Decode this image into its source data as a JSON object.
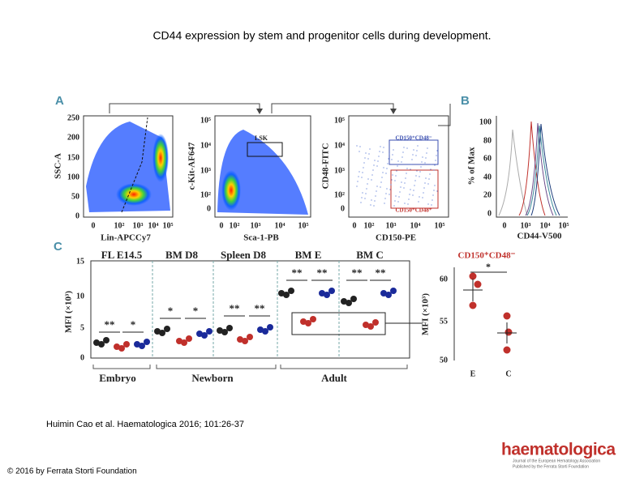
{
  "title": "CD44 expression by stem and progenitor cells during development.",
  "figure": {
    "panel_a": {
      "letter": "A",
      "plots": [
        {
          "ylabel": "SSC-A",
          "xlabel": "Lin-APCCy7",
          "yticks": [
            "250",
            "200",
            "150",
            "100",
            "50",
            "0"
          ],
          "xticks": [
            "0",
            "10²",
            "10³",
            "10⁴",
            "10⁵"
          ]
        },
        {
          "ylabel": "c-Kit-AF647",
          "xlabel": "Sca-1-PB",
          "yticks": [
            "10⁵",
            "10⁴",
            "10³",
            "10²",
            "0"
          ],
          "xticks": [
            "0",
            "10²",
            "10³",
            "10⁴",
            "10⁵"
          ],
          "gate": "LSK"
        },
        {
          "ylabel": "CD48-FITC",
          "xlabel": "CD150-PE",
          "yticks": [
            "10⁵",
            "10⁴",
            "10³",
            "10²",
            "0"
          ],
          "xticks": [
            "0",
            "10²",
            "10³",
            "10⁴",
            "10⁵"
          ],
          "gates": [
            "CD150⁺CD48⁻",
            "CD150⁺CD48⁺"
          ]
        }
      ]
    },
    "panel_b": {
      "letter": "B",
      "ylabel": "% of Max",
      "xlabel": "CD44-V500",
      "yticks": [
        "100",
        "80",
        "60",
        "40",
        "20",
        "0"
      ],
      "xticks": [
        "0",
        "10³",
        "10⁴",
        "10⁵"
      ]
    },
    "panel_c": {
      "letter": "C",
      "ylabel": "MFI (×10³)",
      "yticks": [
        "15",
        "10",
        "5",
        "0"
      ],
      "groups": [
        "FL E14.5",
        "BM D8",
        "Spleen D8",
        "BM E",
        "BM C"
      ],
      "stages": [
        "Embryo",
        "Newborn",
        "Adult"
      ],
      "significance": [
        "**",
        "*",
        "*",
        "*",
        "**",
        "**",
        "**",
        "**",
        "**",
        "**"
      ],
      "inset": {
        "title": "CD150⁺CD48⁻",
        "significance": "*",
        "ylabel": "MFI (×10³)",
        "yticks": [
          "60",
          "55",
          "50"
        ],
        "categories": [
          "E",
          "C"
        ]
      }
    }
  },
  "citation": "Huimin Cao et al. Haematologica 2016; 101:26-37",
  "copyright": "© 2016 by Ferrata Storti Foundation",
  "logo": {
    "name": "haematologica",
    "line1": "Journal of the European Hematology Association",
    "line2": "Published by the Ferrata Storti Foundation"
  }
}
